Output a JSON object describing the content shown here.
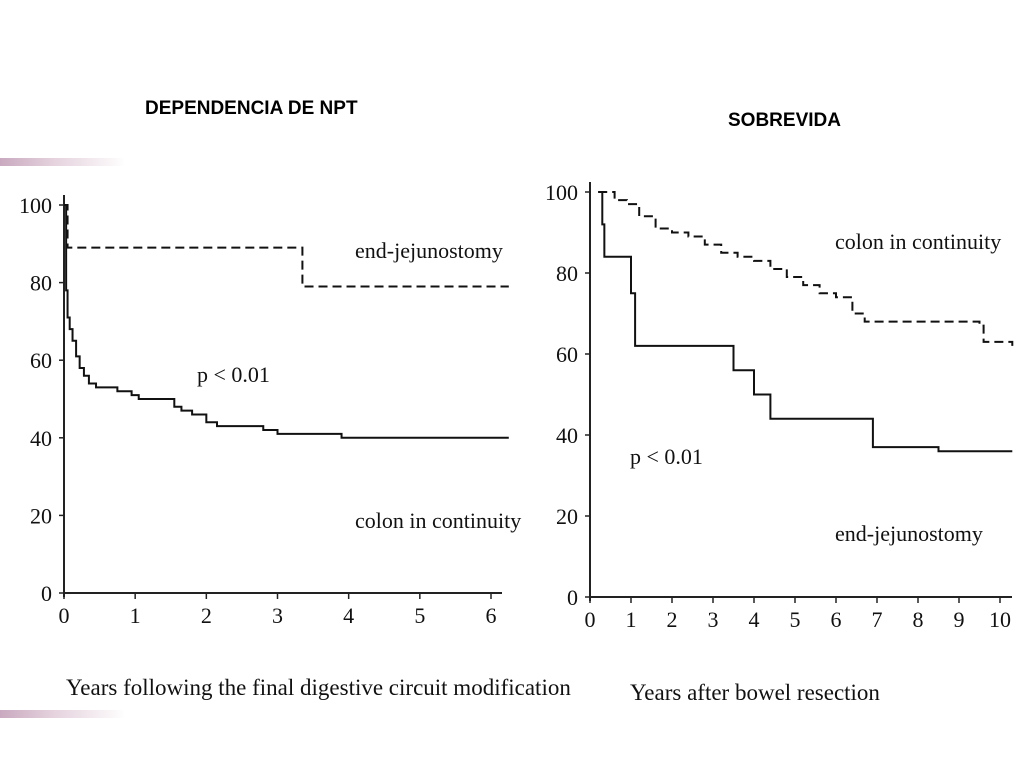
{
  "slide": {
    "title_left": "DEPENDENCIA DE NPT",
    "title_right": "SOBREVIDA"
  },
  "chart_data": [
    {
      "type": "line",
      "title": "",
      "xlabel": "Years following the final digestive circuit modification",
      "ylabel": "",
      "xlim": [
        0,
        6
      ],
      "ylim": [
        0,
        100
      ],
      "xticks": [
        0,
        1,
        2,
        3,
        4,
        5,
        6
      ],
      "yticks": [
        0,
        20,
        40,
        60,
        80,
        100
      ],
      "annotation": "p < 0.01",
      "series": [
        {
          "name": "end-jejunostomy",
          "style": "dashed",
          "x": [
            0,
            0.05,
            0.05,
            3.35,
            3.35,
            6.25
          ],
          "y": [
            100,
            100,
            89,
            89,
            79,
            79
          ]
        },
        {
          "name": "colon in continuity",
          "style": "solid",
          "x": [
            0,
            0.03,
            0.05,
            0.08,
            0.12,
            0.17,
            0.22,
            0.28,
            0.35,
            0.45,
            0.55,
            0.75,
            0.95,
            1.05,
            1.45,
            1.55,
            1.65,
            1.8,
            2.0,
            2.15,
            2.5,
            2.8,
            3.0,
            3.9,
            4.5,
            6.25
          ],
          "y": [
            100,
            78,
            71,
            68,
            65,
            61,
            58,
            56,
            54,
            53,
            53,
            52,
            51,
            50,
            50,
            48,
            47,
            46,
            44,
            43,
            43,
            42,
            41,
            40,
            40,
            40
          ]
        }
      ]
    },
    {
      "type": "line",
      "title": "",
      "xlabel": "Years after bowel resection",
      "ylabel": "",
      "xlim": [
        0,
        10
      ],
      "ylim": [
        0,
        100
      ],
      "xticks": [
        0,
        1,
        2,
        3,
        4,
        5,
        6,
        7,
        8,
        9,
        10
      ],
      "yticks": [
        0,
        20,
        40,
        60,
        80,
        100
      ],
      "annotation": "p < 0.01",
      "series": [
        {
          "name": "colon in continuity",
          "style": "dashed",
          "x": [
            0.2,
            0.6,
            0.9,
            1.2,
            1.6,
            2.0,
            2.4,
            2.8,
            3.2,
            3.6,
            4.0,
            4.4,
            4.8,
            5.2,
            5.6,
            6.0,
            6.4,
            6.7,
            6.9,
            7.5,
            8.2,
            9.0,
            9.5,
            9.6,
            10.3
          ],
          "y": [
            100,
            98,
            97,
            94,
            91,
            90,
            89,
            87,
            85,
            84,
            83,
            81,
            79,
            77,
            75,
            74,
            70,
            68,
            68,
            68,
            68,
            68,
            67,
            63,
            62
          ]
        },
        {
          "name": "end-jejunostomy",
          "style": "solid",
          "x": [
            0.2,
            0.3,
            0.35,
            0.9,
            1.0,
            1.1,
            3.1,
            3.5,
            4.0,
            4.4,
            6.8,
            6.9,
            8.5,
            10.3
          ],
          "y": [
            100,
            92,
            84,
            84,
            75,
            62,
            62,
            56,
            50,
            44,
            44,
            37,
            36,
            36
          ]
        }
      ]
    }
  ]
}
